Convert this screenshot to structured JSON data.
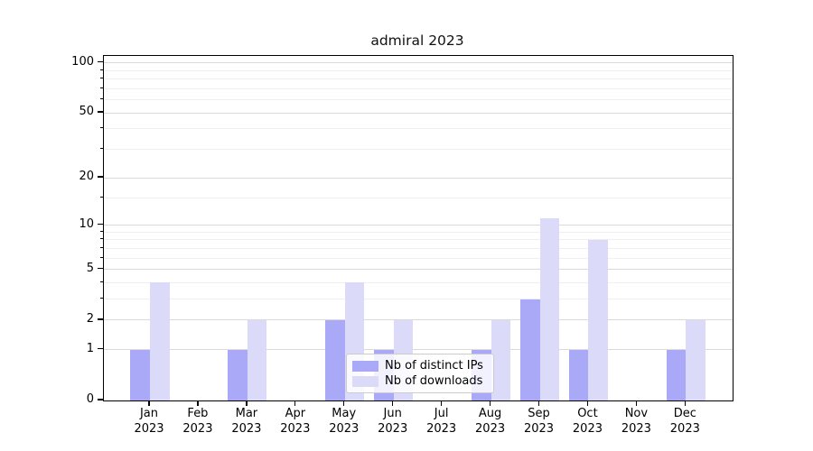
{
  "chart_data": {
    "type": "bar",
    "title": "admiral 2023",
    "categories": [
      "Jan 2023",
      "Feb 2023",
      "Mar 2023",
      "Apr 2023",
      "May 2023",
      "Jun 2023",
      "Jul 2023",
      "Aug 2023",
      "Sep 2023",
      "Oct 2023",
      "Nov 2023",
      "Dec 2023"
    ],
    "series": [
      {
        "name": "Nb of distinct IPs",
        "color": "#a9a9f7",
        "values": [
          1,
          0,
          1,
          0,
          2,
          1,
          0,
          1,
          3,
          1,
          0,
          1
        ]
      },
      {
        "name": "Nb of downloads",
        "color": "#dbdbf9",
        "values": [
          4,
          0,
          2,
          0,
          4,
          2,
          0,
          2,
          11,
          8,
          0,
          2
        ]
      }
    ],
    "xlabel": "",
    "ylabel": "",
    "yscale": "log1p",
    "ylim": [
      0,
      110
    ],
    "y_ticks": [
      0,
      1,
      2,
      5,
      10,
      20,
      50,
      100
    ],
    "y_tick_labels": [
      "0",
      "1",
      "2",
      "5",
      "10",
      "20",
      "50",
      "100"
    ],
    "y_minor_ticks": [
      3,
      4,
      6,
      7,
      8,
      9,
      15,
      30,
      40,
      60,
      70,
      80,
      90
    ],
    "grid": "horizontal",
    "legend_position": "lower center-right inside plot",
    "colors": {
      "axis": "#000000",
      "grid_major": "#d9d9d9",
      "grid_minor": "#efefef",
      "background": "#ffffff",
      "legend_border": "#cccccc"
    }
  }
}
